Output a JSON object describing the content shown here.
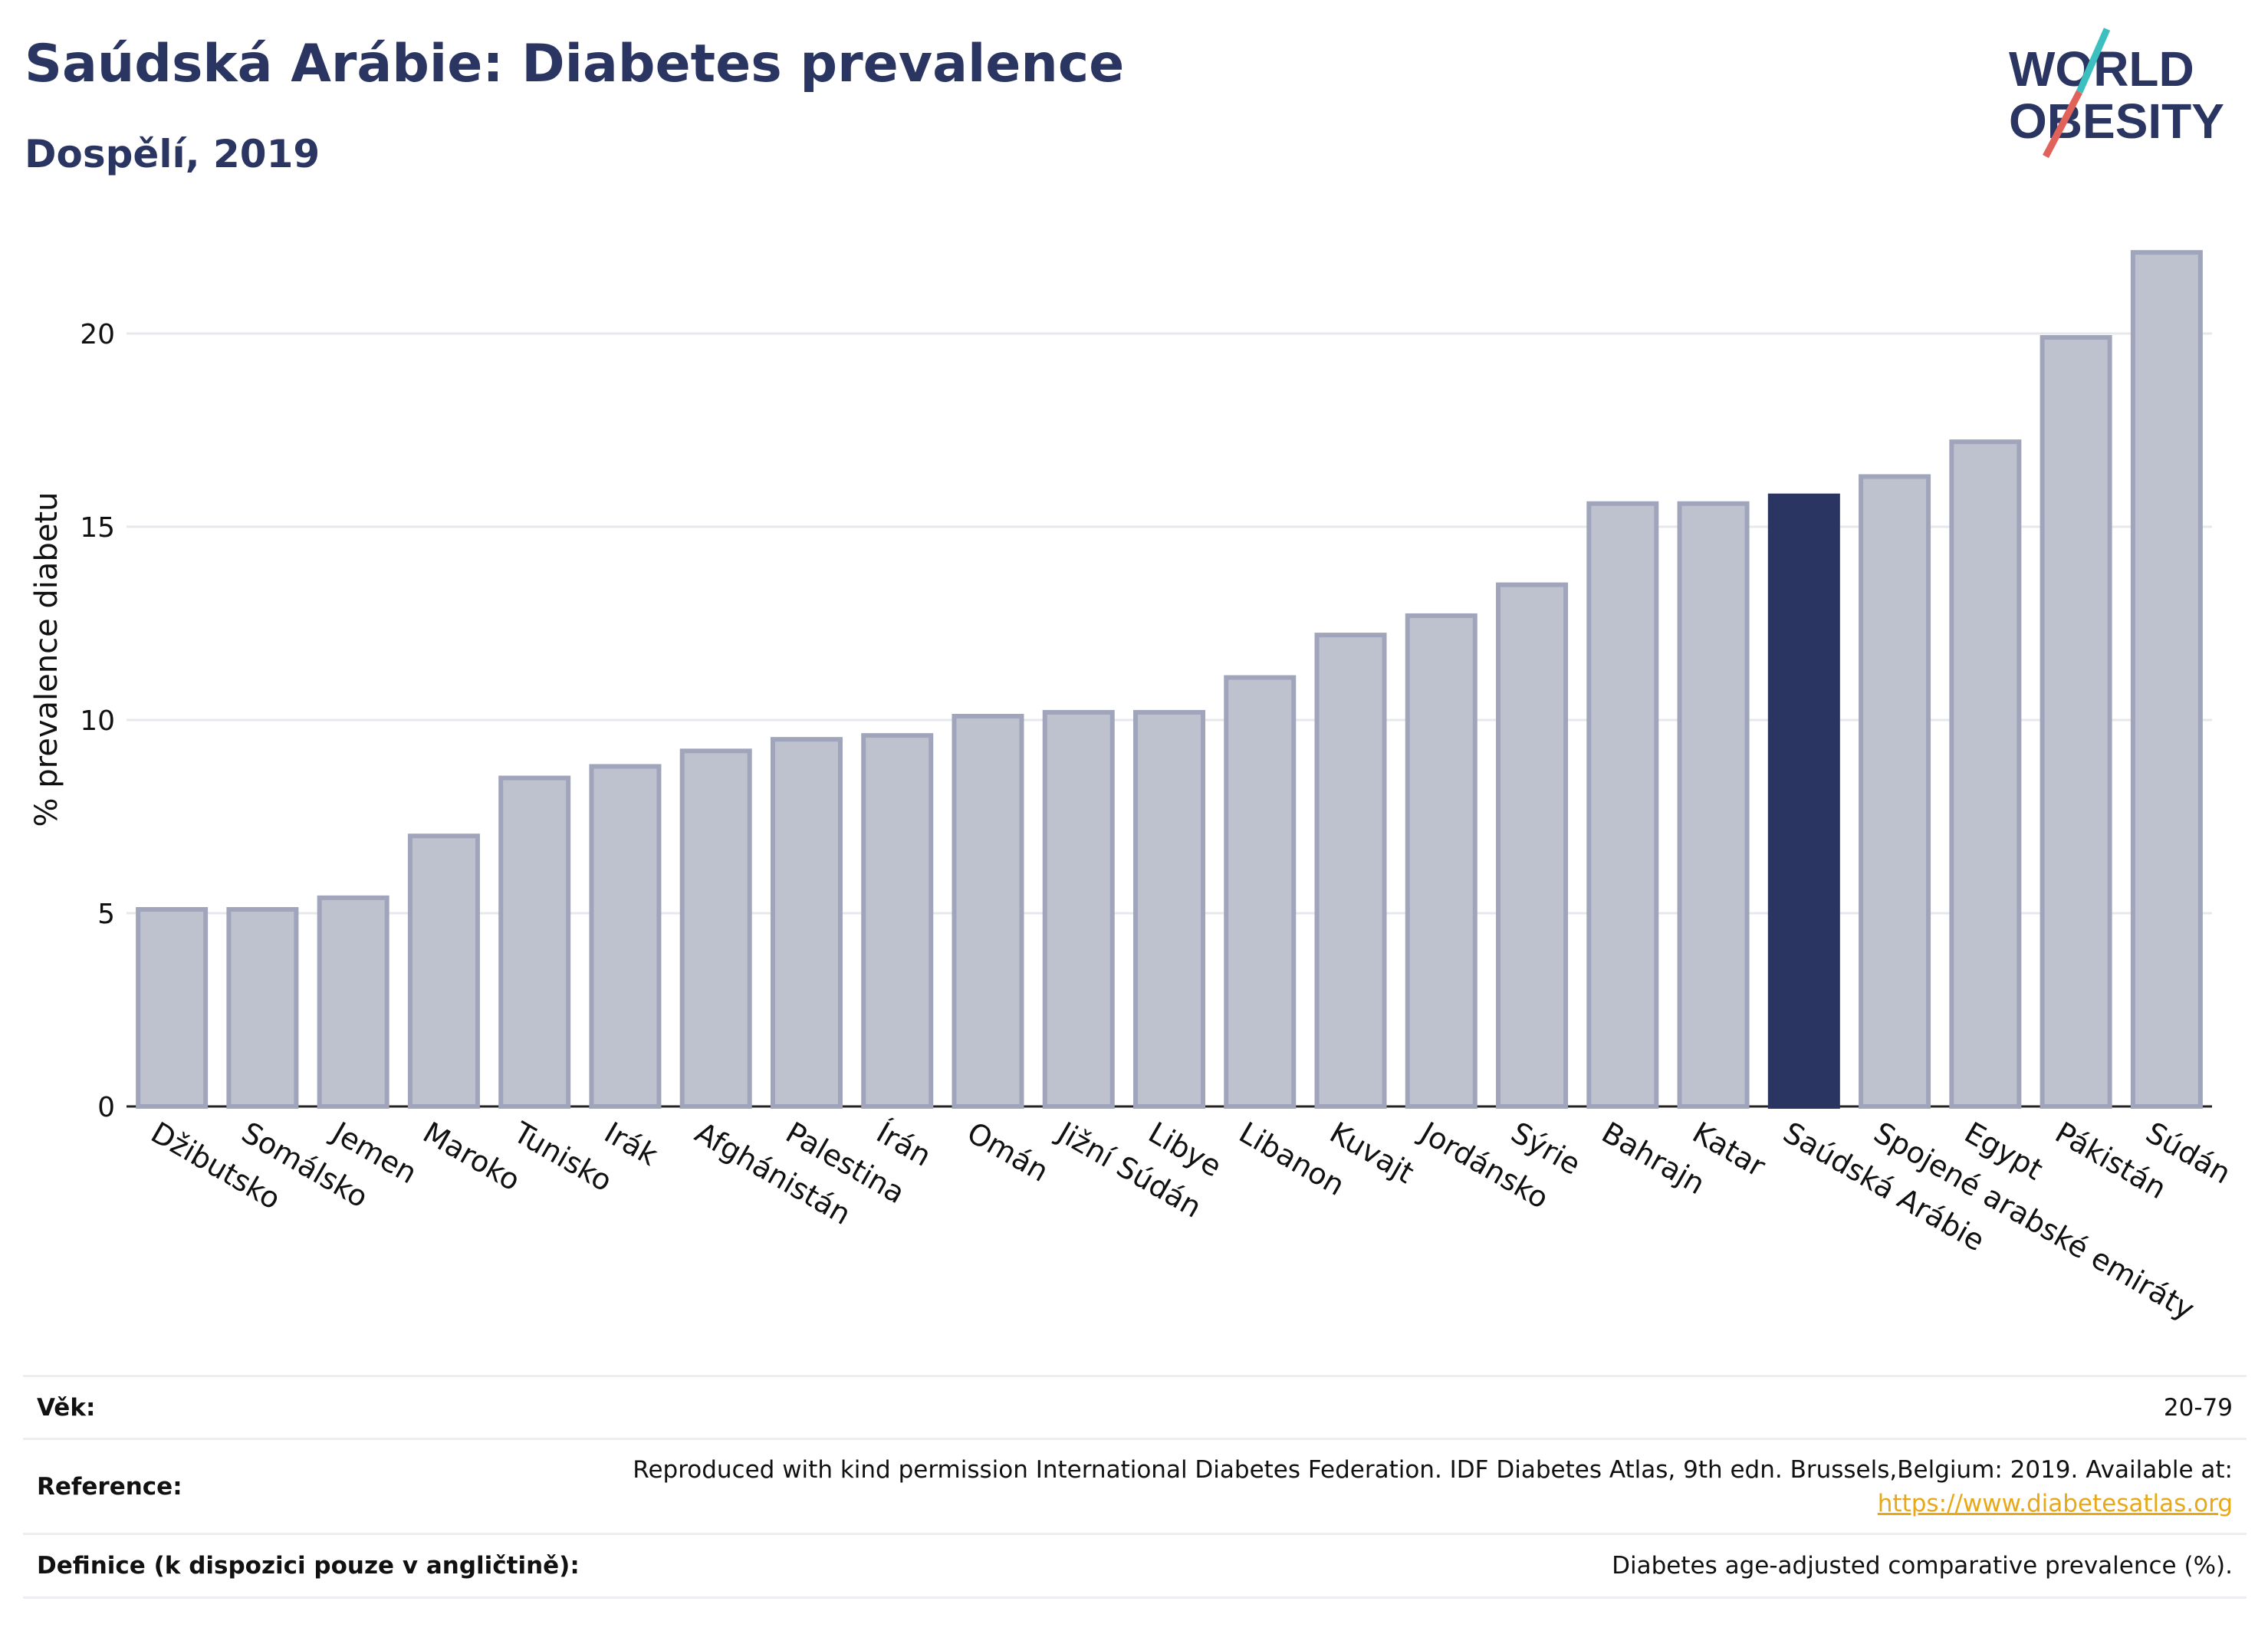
{
  "header": {
    "title": "Saúdská Arábie: Diabetes prevalence",
    "subtitle": "Dospělí, 2019"
  },
  "logo": {
    "line1": "WORLD",
    "line2": "OBESITY"
  },
  "colors": {
    "text": "#2b3562",
    "bar": "#bec2cf",
    "bar_border": "#a0a5bb",
    "highlight": "#2b3562",
    "grid": "#e6e8ee",
    "link": "#e8a817",
    "logo_teal": "#3bbfbf",
    "logo_red": "#e0625a"
  },
  "chart_data": {
    "type": "bar",
    "title": "Saúdská Arábie: Diabetes prevalence",
    "subtitle": "Dospělí, 2019",
    "xlabel": "",
    "ylabel": "% prevalence diabetu",
    "ylim": [
      0,
      22.5
    ],
    "yticks": [
      0,
      5,
      10,
      15,
      20
    ],
    "grid": true,
    "highlight": "Saúdská Arábie",
    "categories": [
      "Džibutsko",
      "Somálsko",
      "Jemen",
      "Maroko",
      "Tunisko",
      "Irák",
      "Afghánistán",
      "Palestina",
      "Írán",
      "Omán",
      "Jižní Súdán",
      "Libye",
      "Libanon",
      "Kuvajt",
      "Jordánsko",
      "Sýrie",
      "Bahrajn",
      "Katar",
      "Saúdská Arábie",
      "Spojené arabské emiráty",
      "Egypt",
      "Pákistán",
      "Súdán"
    ],
    "values": [
      5.1,
      5.1,
      5.4,
      7.0,
      8.5,
      8.8,
      9.2,
      9.5,
      9.6,
      10.1,
      10.2,
      10.2,
      11.1,
      12.2,
      12.7,
      13.5,
      15.6,
      15.6,
      15.8,
      16.3,
      17.2,
      19.9,
      22.1
    ]
  },
  "info": {
    "age_label": "Věk:",
    "age_value": "20-79",
    "reference_label": "Reference:",
    "reference_text": "Reproduced with kind permission International Diabetes Federation. IDF Diabetes Atlas, 9th edn. Brussels,Belgium: 2019. Available at:",
    "reference_link": "https://www.diabetesatlas.org",
    "definition_label": "Definice (k dispozici pouze v angličtině):",
    "definition_value": "Diabetes age-adjusted comparative prevalence (%)."
  }
}
